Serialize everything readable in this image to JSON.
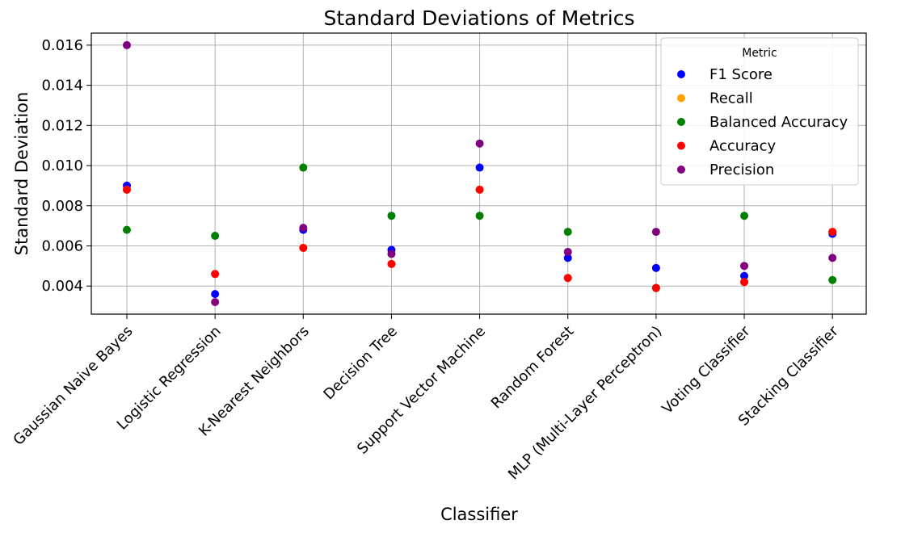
{
  "chart_data": {
    "type": "scatter",
    "title": "Standard Deviations of Metrics",
    "xlabel": "Classifier",
    "ylabel": "Standard Deviation",
    "categories": [
      "Gaussian Naive Bayes",
      "Logistic Regression",
      "K-Nearest Neighbors",
      "Decision Tree",
      "Support Vector Machine",
      "Random Forest",
      "MLP (Multi-Layer Perceptron)",
      "Voting Classifier",
      "Stacking Classifier"
    ],
    "ylim": [
      0.0026,
      0.0166
    ],
    "yticks": [
      "0.004",
      "0.006",
      "0.008",
      "0.010",
      "0.012",
      "0.014",
      "0.016"
    ],
    "grid": true,
    "legend": {
      "title": "Metric",
      "position": "top-right"
    },
    "series": [
      {
        "name": "F1 Score",
        "color": "#0000ff",
        "values": [
          0.009,
          0.0036,
          0.0068,
          0.0058,
          0.0099,
          0.0054,
          0.0049,
          0.0045,
          0.0066
        ]
      },
      {
        "name": "Recall",
        "color": "#ffa500",
        "values": [
          0.0088,
          0.0046,
          0.0059,
          0.0051,
          0.0088,
          0.0044,
          0.0039,
          0.0042,
          0.0067
        ]
      },
      {
        "name": "Balanced Accuracy",
        "color": "#008000",
        "values": [
          0.0068,
          0.0065,
          0.0099,
          0.0075,
          0.0075,
          0.0067,
          0.0039,
          0.0075,
          0.0043
        ]
      },
      {
        "name": "Accuracy",
        "color": "#ff0000",
        "values": [
          0.0088,
          0.0046,
          0.0059,
          0.0051,
          0.0088,
          0.0044,
          0.0039,
          0.0042,
          0.0067
        ]
      },
      {
        "name": "Precision",
        "color": "#800080",
        "values": [
          0.016,
          0.0032,
          0.0069,
          0.0056,
          0.0111,
          0.0057,
          0.0067,
          0.005,
          0.0054
        ]
      }
    ]
  }
}
